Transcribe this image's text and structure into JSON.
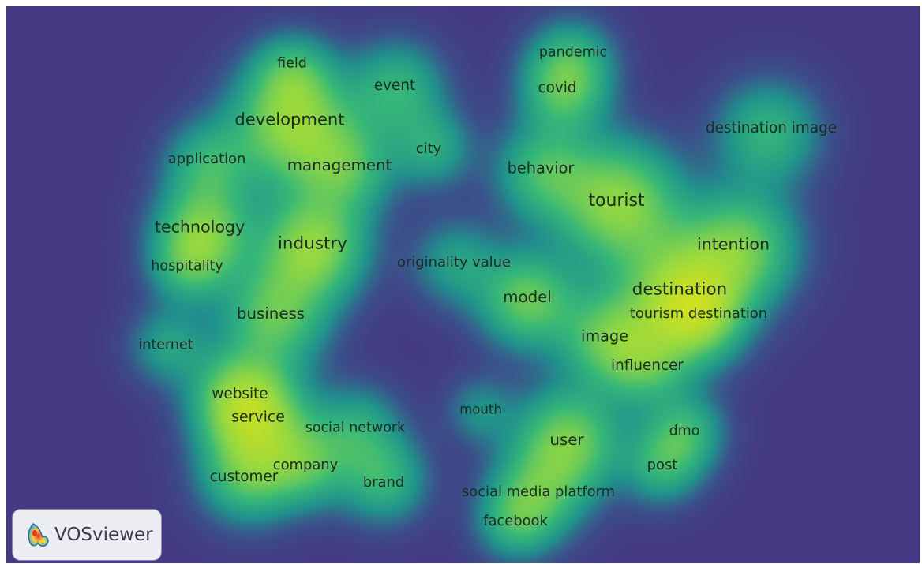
{
  "background_color": "#443983",
  "terms": [
    {
      "label": "field",
      "weight": 0.5
    },
    {
      "label": "event",
      "weight": 0.6
    },
    {
      "label": "pandemic",
      "weight": 0.5
    },
    {
      "label": "covid",
      "weight": 0.6
    },
    {
      "label": "development",
      "weight": 0.9
    },
    {
      "label": "destination image",
      "weight": 0.6
    },
    {
      "label": "application",
      "weight": 0.55
    },
    {
      "label": "city",
      "weight": 0.55
    },
    {
      "label": "management",
      "weight": 0.75
    },
    {
      "label": "behavior",
      "weight": 0.7
    },
    {
      "label": "tourist",
      "weight": 1.0
    },
    {
      "label": "technology",
      "weight": 0.85
    },
    {
      "label": "industry",
      "weight": 0.95
    },
    {
      "label": "intention",
      "weight": 0.85
    },
    {
      "label": "hospitality",
      "weight": 0.5
    },
    {
      "label": "originality value",
      "weight": 0.55
    },
    {
      "label": "model",
      "weight": 0.75
    },
    {
      "label": "destination",
      "weight": 0.95
    },
    {
      "label": "business",
      "weight": 0.75
    },
    {
      "label": "tourism destination",
      "weight": 0.55
    },
    {
      "label": "image",
      "weight": 0.7
    },
    {
      "label": "internet",
      "weight": 0.5
    },
    {
      "label": "influencer",
      "weight": 0.6
    },
    {
      "label": "website",
      "weight": 0.6
    },
    {
      "label": "mouth",
      "weight": 0.4
    },
    {
      "label": "service",
      "weight": 0.65
    },
    {
      "label": "social network",
      "weight": 0.5
    },
    {
      "label": "dmo",
      "weight": 0.5
    },
    {
      "label": "user",
      "weight": 0.75
    },
    {
      "label": "company",
      "weight": 0.55
    },
    {
      "label": "post",
      "weight": 0.55
    },
    {
      "label": "customer",
      "weight": 0.6
    },
    {
      "label": "brand",
      "weight": 0.55
    },
    {
      "label": "social media platform",
      "weight": 0.55
    },
    {
      "label": "facebook",
      "weight": 0.55
    }
  ],
  "logo": {
    "text": "VOSviewer"
  }
}
